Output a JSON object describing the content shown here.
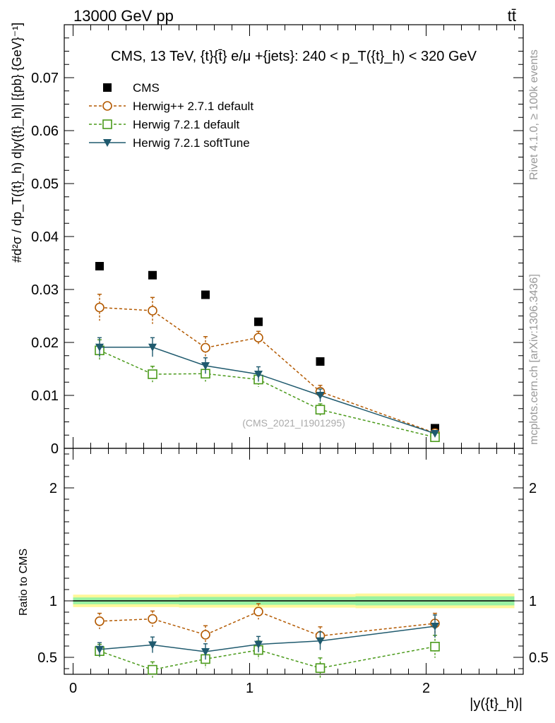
{
  "header": {
    "left": "13000 GeV pp",
    "right": "tt̄"
  },
  "side_labels": {
    "rivet": "Rivet 4.1.0, ≥ 100k events",
    "mcplots": "mcplots.cern.ch [arXiv:1306.3436]"
  },
  "chart_data": [
    {
      "type": "scatter",
      "title": "CMS, 13 TeV, {t}{t̄} e/μ +{jets}: 240 <  p_T({t}_h) < 320 GeV",
      "xlabel": "|y({t}_h)|",
      "ylabel": "#d²σ / dp_T({t}_h) d|y({t}_h)| [{pb} {GeV}⁻¹]",
      "ylim": [
        0,
        0.08
      ],
      "xlim": [
        -0.05,
        2.55
      ],
      "watermark": "(CMS_2021_I1901295)",
      "yticks": [
        0,
        0.01,
        0.02,
        0.03,
        0.04,
        0.05,
        0.06,
        0.07
      ],
      "ytick_labels": [
        "0",
        "0.01",
        "0.02",
        "0.03",
        "0.04",
        "0.05",
        "0.06",
        "0.07"
      ],
      "x": [
        0.15,
        0.45,
        0.75,
        1.05,
        1.4,
        2.05
      ],
      "series": [
        {
          "name": "CMS",
          "values": [
            0.0344,
            0.0327,
            0.029,
            0.0239,
            0.0164,
            0.0038
          ],
          "errors": [
            0.0,
            0.0,
            0.0,
            0.0,
            0.0,
            0.0
          ],
          "color": "#000000",
          "marker": "square-filled",
          "line": "none"
        },
        {
          "name": "Herwig++ 2.7.1 default",
          "values": [
            0.0266,
            0.026,
            0.019,
            0.0209,
            0.0107,
            0.0029
          ],
          "errors": [
            0.0025,
            0.0025,
            0.0021,
            0.0012,
            0.0012,
            0.0004
          ],
          "color": "#b35900",
          "marker": "circle-open",
          "line": "dashed"
        },
        {
          "name": "Herwig 7.2.1 default",
          "values": [
            0.0185,
            0.014,
            0.0141,
            0.013,
            0.0073,
            0.0021
          ],
          "errors": [
            0.002,
            0.0015,
            0.0015,
            0.0014,
            0.0011,
            0.0004
          ],
          "color": "#4a9a1a",
          "marker": "square-open",
          "line": "dashed"
        },
        {
          "name": "Herwig 7.2.1 softTune",
          "values": [
            0.0191,
            0.0191,
            0.0156,
            0.014,
            0.01,
            0.0028
          ],
          "errors": [
            0.0018,
            0.0018,
            0.0015,
            0.0014,
            0.0012,
            0.0004
          ],
          "color": "#1f5a6e",
          "marker": "triangle-down-filled",
          "line": "solid"
        }
      ]
    },
    {
      "type": "scatter",
      "ylabel": "Ratio to CMS",
      "xlabel": "|y({t}_h)|",
      "ylim": [
        0.35,
        2.35
      ],
      "xlim": [
        -0.05,
        2.55
      ],
      "yticks": [
        0.5,
        1,
        2
      ],
      "ytick_labels": [
        "0.5",
        "1",
        "2"
      ],
      "xticks": [
        0,
        1,
        2
      ],
      "xtick_labels": [
        "0",
        "1",
        "2"
      ],
      "x": [
        0.15,
        0.45,
        0.75,
        1.05,
        1.4,
        2.05
      ],
      "bands": {
        "x_edges": [
          0.0,
          0.3,
          0.6,
          0.9,
          1.2,
          1.6,
          2.5
        ],
        "yellow": [
          0.055,
          0.055,
          0.06,
          0.06,
          0.06,
          0.065
        ],
        "green": [
          0.03,
          0.03,
          0.035,
          0.035,
          0.035,
          0.04
        ]
      },
      "series": [
        {
          "name": "Herwig++ 2.7.1 default",
          "values": [
            0.82,
            0.84,
            0.7,
            0.905,
            0.69,
            0.8
          ],
          "errors": [
            0.07,
            0.07,
            0.08,
            0.07,
            0.08,
            0.09
          ],
          "color": "#b35900",
          "marker": "circle-open",
          "line": "dashed"
        },
        {
          "name": "Herwig 7.2.1 default",
          "values": [
            0.555,
            0.39,
            0.485,
            0.565,
            0.405,
            0.595
          ],
          "errors": [
            0.06,
            0.07,
            0.08,
            0.08,
            0.09,
            0.1
          ],
          "color": "#4a9a1a",
          "marker": "square-open",
          "line": "dashed"
        },
        {
          "name": "Herwig 7.2.1 softTune",
          "values": [
            0.57,
            0.61,
            0.55,
            0.615,
            0.645,
            0.775
          ],
          "errors": [
            0.06,
            0.07,
            0.07,
            0.07,
            0.08,
            0.1
          ],
          "color": "#1f5a6e",
          "marker": "triangle-down-filled",
          "line": "solid"
        }
      ]
    }
  ]
}
